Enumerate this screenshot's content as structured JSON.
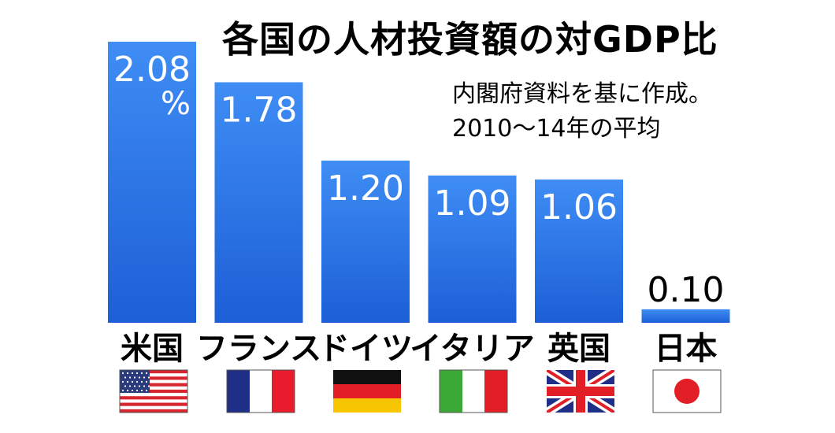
{
  "chart_data": {
    "type": "bar",
    "title": "各国の人材投資額の対GDP比",
    "annotation": [
      "内閣府資料を基に作成。",
      "2010〜14年の平均"
    ],
    "unit": "%",
    "categories": [
      "米国",
      "フランス",
      "ドイツ",
      "イタリア",
      "英国",
      "日本"
    ],
    "values": [
      2.08,
      1.78,
      1.2,
      1.09,
      1.06,
      0.1
    ],
    "value_labels": [
      "2.08",
      "1.78",
      "1.20",
      "1.09",
      "1.06",
      "0.10"
    ],
    "ylim": [
      0,
      2.08
    ],
    "grid": false,
    "legend": "none",
    "flags": [
      "us-flag-icon",
      "france-flag-icon",
      "germany-flag-icon",
      "italy-flag-icon",
      "uk-flag-icon",
      "japan-flag-icon"
    ],
    "colors": {
      "bar_top": "#3f8df5",
      "bar_bottom": "#1c5fd6"
    }
  }
}
